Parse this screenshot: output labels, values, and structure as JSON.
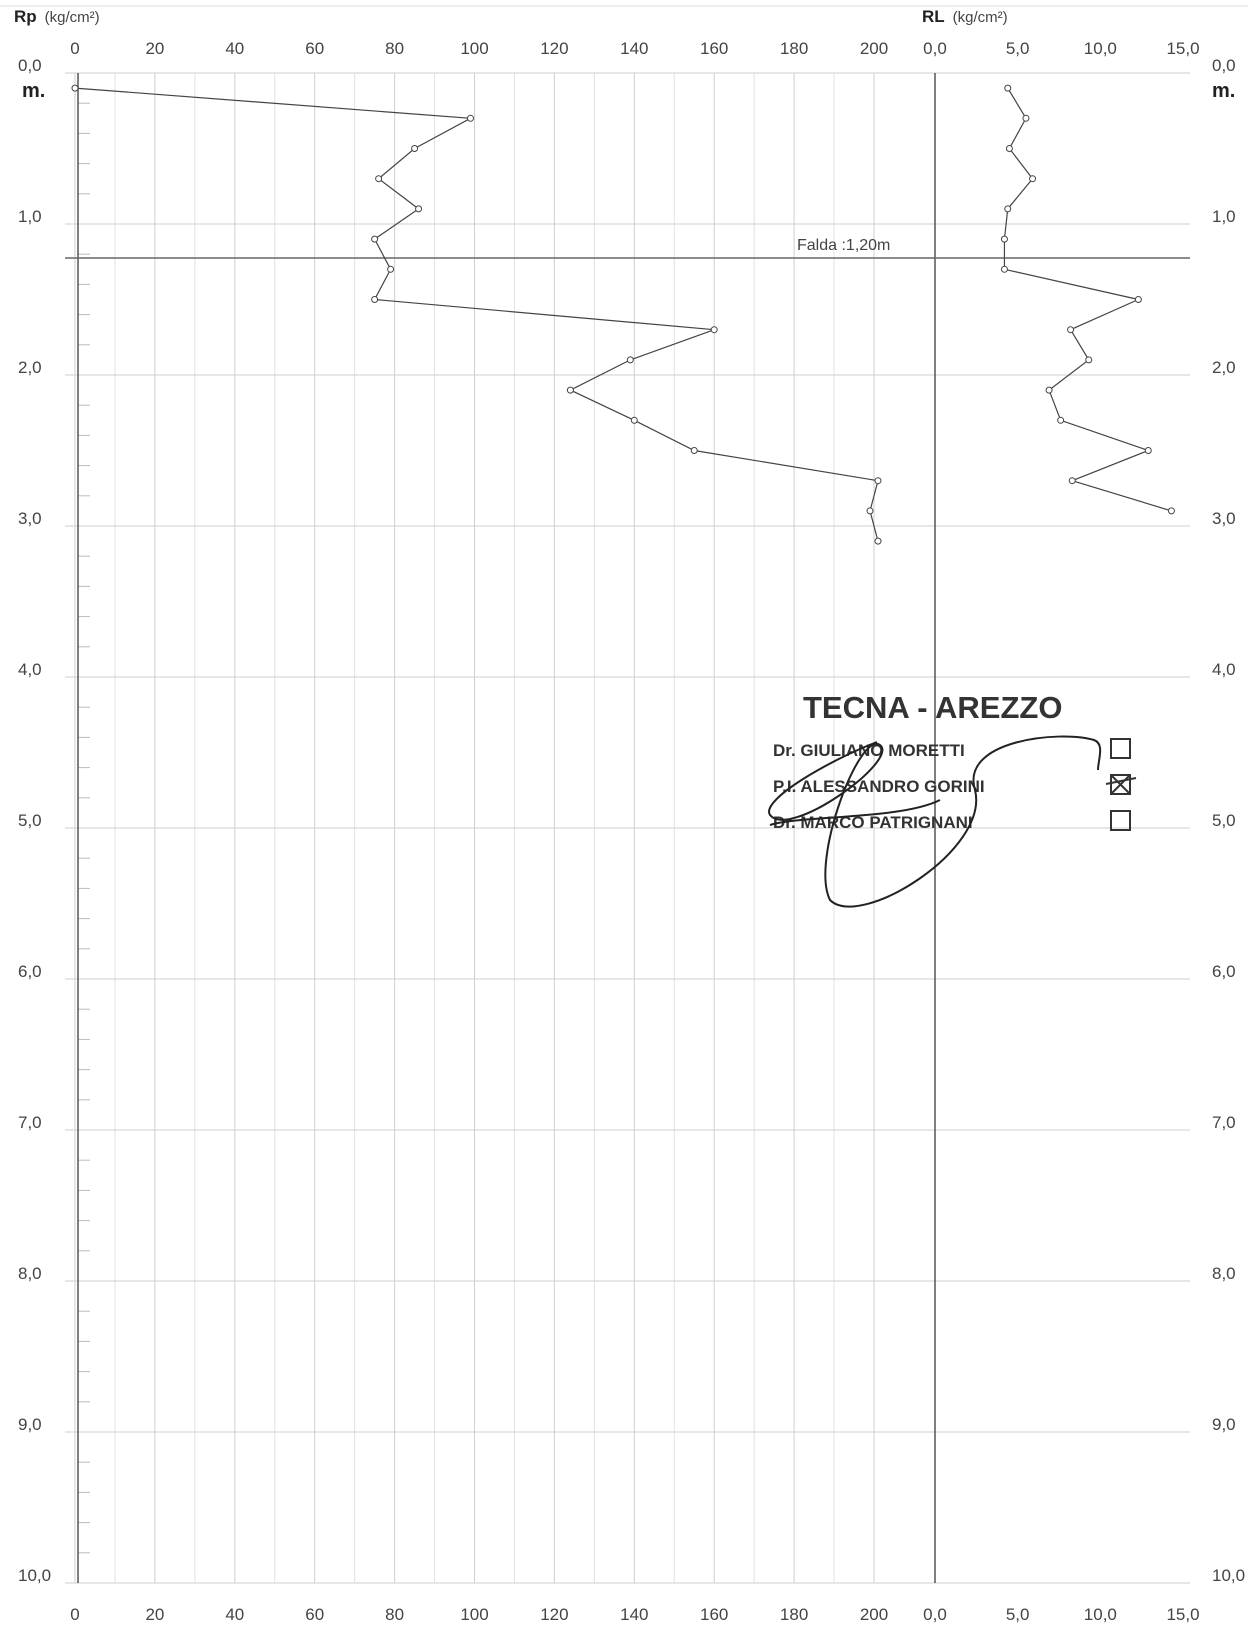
{
  "chart_data": [
    {
      "type": "line",
      "title": "",
      "xlabel": "Rp",
      "xunit": "(kg/cm²)",
      "ylabel": "m.",
      "xlim": [
        0,
        200
      ],
      "ylim": [
        0,
        10
      ],
      "xticks": [
        0,
        20,
        40,
        60,
        80,
        100,
        120,
        140,
        160,
        180,
        200
      ],
      "xtick_labels": [
        "0",
        "20",
        "40",
        "60",
        "80",
        "100",
        "120",
        "140",
        "160",
        "180",
        "200"
      ],
      "yticks": [
        0,
        1,
        2,
        3,
        4,
        5,
        6,
        7,
        8,
        9,
        10
      ],
      "ytick_labels": [
        "0,0",
        "1,0",
        "2,0",
        "3,0",
        "4,0",
        "5,0",
        "6,0",
        "7,0",
        "8,0",
        "9,0",
        "10,0"
      ],
      "series": [
        {
          "x": [
            0,
            99,
            85,
            76,
            86,
            75,
            79,
            75,
            160,
            139,
            124,
            140,
            155,
            201,
            199,
            201
          ],
          "y": [
            0.1,
            0.3,
            0.5,
            0.7,
            0.9,
            1.1,
            1.3,
            1.5,
            1.7,
            1.9,
            2.1,
            2.3,
            2.5,
            2.7,
            2.9,
            3.1
          ]
        }
      ]
    },
    {
      "type": "line",
      "title": "",
      "xlabel": "RL",
      "xunit": "(kg/cm²)",
      "ylabel": "m.",
      "xlim": [
        0,
        15
      ],
      "ylim": [
        0,
        10
      ],
      "xticks": [
        0,
        5,
        10,
        15
      ],
      "xtick_labels": [
        "0,0",
        "5,0",
        "10,0",
        "15,0"
      ],
      "yticks": [
        0,
        1,
        2,
        3,
        4,
        5,
        6,
        7,
        8,
        9,
        10
      ],
      "ytick_labels": [
        "0,0",
        "1,0",
        "2,0",
        "3,0",
        "4,0",
        "5,0",
        "6,0",
        "7,0",
        "8,0",
        "9,0",
        "10,0"
      ],
      "series": [
        {
          "x": [
            4.4,
            5.5,
            4.5,
            5.9,
            4.4,
            4.2,
            4.2,
            12.3,
            8.2,
            9.3,
            6.9,
            7.6,
            12.9,
            8.3,
            14.3
          ],
          "y": [
            0.1,
            0.3,
            0.5,
            0.7,
            0.9,
            1.1,
            1.3,
            1.5,
            1.7,
            1.9,
            2.1,
            2.3,
            2.5,
            2.7,
            2.9
          ]
        }
      ]
    }
  ],
  "water_table": {
    "label": "Falda :1,20m",
    "depth": 1.2
  },
  "stamp": {
    "company": "TECNA - AREZZO",
    "people": [
      {
        "name": "Dr. GIULIANO MORETTI",
        "checked": false
      },
      {
        "name": "P.I. ALESSANDRO GORINI",
        "checked": true
      },
      {
        "name": "Dr. MARCO PATRIGNANI",
        "checked": false
      }
    ]
  }
}
